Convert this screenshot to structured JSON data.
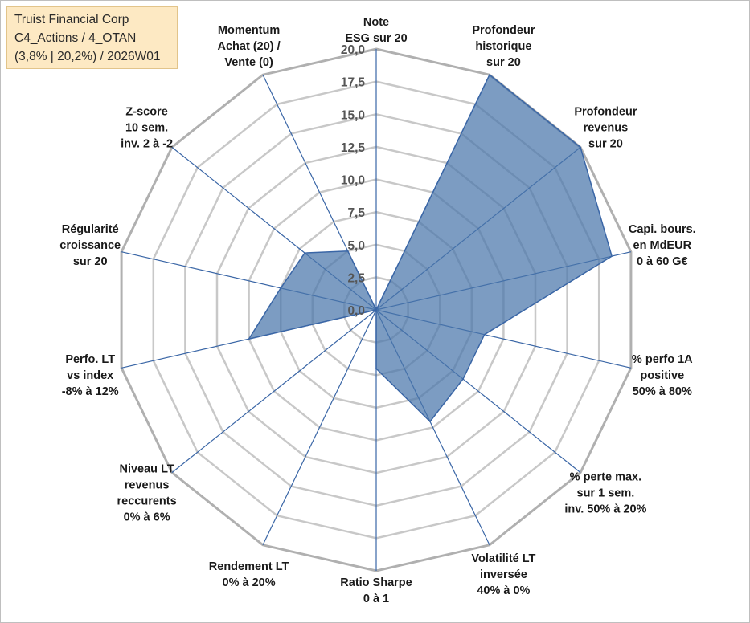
{
  "info": {
    "company": "Truist Financial Corp",
    "category": "C4_Actions / 4_OTAN",
    "stats": "(3,8% | 20,2%) / 2026W01"
  },
  "colors": {
    "fill": "#4a76aa",
    "stroke": "#3a66a6",
    "spoke": "#3a66a6",
    "grid": "#c8c8c8",
    "outer_grid": "#b0b0b0",
    "info_bg": "#fde9c3"
  },
  "chart_data": {
    "type": "radar",
    "rmax": 20,
    "tick_step": 2.5,
    "tick_labels": [
      "0,0",
      "2,5",
      "5,0",
      "7,5",
      "10,0",
      "12,5",
      "15,0",
      "17,5",
      "20,0"
    ],
    "axes": [
      {
        "label": [
          "Note",
          "ESG sur 20"
        ],
        "value": 0
      },
      {
        "label": [
          "Profondeur",
          "historique",
          "sur 20"
        ],
        "value": 20
      },
      {
        "label": [
          "Profondeur",
          "revenus",
          "sur 20"
        ],
        "value": 20
      },
      {
        "label": [
          "Capi. bours.",
          "en MdEUR",
          "0 à 60 G€"
        ],
        "value": 18.5
      },
      {
        "label": [
          "% perfo 1A",
          "positive",
          "50% à 80%"
        ],
        "value": 8.5
      },
      {
        "label": [
          "% perte max.",
          "sur 1 sem.",
          "inv. 50% à 20%"
        ],
        "value": 8.5
      },
      {
        "label": [
          "Volatilité LT",
          "inversée",
          "40% à 0%"
        ],
        "value": 9.5
      },
      {
        "label": [
          "Ratio Sharpe",
          "0 à 1"
        ],
        "value": 4.5
      },
      {
        "label": [
          "Rendement LT",
          "0% à 20%"
        ],
        "value": 0
      },
      {
        "label": [
          "Niveau LT",
          "revenus",
          "reccurents",
          "0% à 6%"
        ],
        "value": 0
      },
      {
        "label": [
          "Perfo. LT",
          "vs index",
          "-8% à 12%"
        ],
        "value": 10
      },
      {
        "label": [
          "Régularité",
          "croissance",
          "sur 20"
        ],
        "value": 7.5
      },
      {
        "label": [
          "Z-score",
          "10 sem.",
          "inv. 2 à -2"
        ],
        "value": 7
      },
      {
        "label": [
          "Momentum",
          "Achat (20) /",
          "Vente (0)"
        ],
        "value": 5
      }
    ]
  }
}
